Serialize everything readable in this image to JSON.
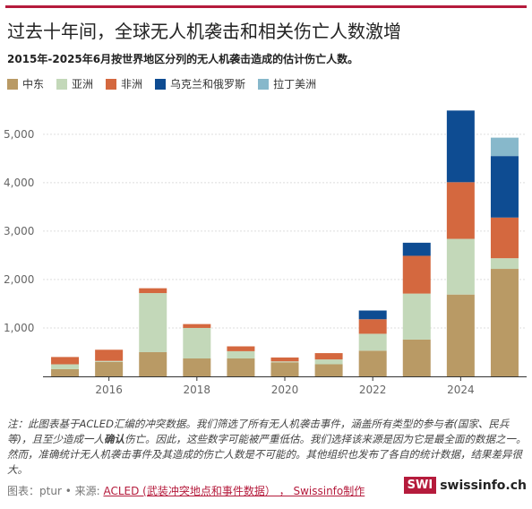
{
  "header": {
    "title": "过去十年间，全球无人机袭击和相关伤亡人数激增",
    "subtitle": "2015年-2025年6月按世界地区分列的无人机袭击造成的估计伤亡人数。"
  },
  "colors": {
    "accent": "#b51b3c",
    "middle_east": "#b99a65",
    "asia": "#c3d8b9",
    "africa": "#d4683f",
    "ukraine_russia": "#0e4c92",
    "latin_america": "#87b8cb"
  },
  "chart_data": {
    "type": "bar",
    "stacked": true,
    "categories": [
      "2015",
      "2016",
      "2017",
      "2018",
      "2019",
      "2020",
      "2021",
      "2022",
      "2023",
      "2024",
      "2025"
    ],
    "x_ticks": [
      "2016",
      "2018",
      "2020",
      "2022",
      "2024"
    ],
    "y_ticks": [
      "1,000",
      "2,000",
      "3,000",
      "4,000",
      "5,000"
    ],
    "ylim": [
      0,
      5700
    ],
    "grid": true,
    "legend_position": "top-left",
    "series": [
      {
        "name": "中东",
        "color": "#b99a65",
        "values": [
          150,
          300,
          500,
          370,
          370,
          290,
          250,
          530,
          760,
          1690,
          2220
        ]
      },
      {
        "name": "亚洲",
        "color": "#c3d8b9",
        "values": [
          100,
          20,
          1220,
          630,
          150,
          20,
          100,
          350,
          950,
          1150,
          220
        ]
      },
      {
        "name": "非洲",
        "color": "#d4683f",
        "values": [
          150,
          230,
          100,
          80,
          100,
          80,
          130,
          300,
          780,
          1170,
          840
        ]
      },
      {
        "name": "乌克兰和俄罗斯",
        "color": "#0e4c92",
        "values": [
          0,
          0,
          0,
          0,
          0,
          0,
          0,
          180,
          270,
          1480,
          1270
        ]
      },
      {
        "name": "拉丁美洲",
        "color": "#87b8cb",
        "values": [
          0,
          0,
          0,
          0,
          0,
          0,
          0,
          0,
          0,
          0,
          380
        ]
      }
    ]
  },
  "note": {
    "prefix": "注：此图表基于ACLED汇编的冲突数据。我们筛选了所有无人机袭击事件，涵盖所有类型的参与者(国家、民兵等)，且至少造成一人",
    "bold": "确认",
    "suffix": "伤亡。因此，这些数字可能被严重低估。我们选择该来源是因为它是最全面的数据之一。然而，准确统计无人机袭击事件及其造成的伤亡人数是不可能的。其他组织也发布了各自的统计数据，结果差异很大。"
  },
  "source": {
    "prefix": "图表：",
    "author": "ptur • 来源: ",
    "link": "ACLED (武装冲突地点和事件数据） ， Swissinfo制作"
  },
  "logo": {
    "box": "SWI",
    "text": "swissinfo.ch"
  }
}
